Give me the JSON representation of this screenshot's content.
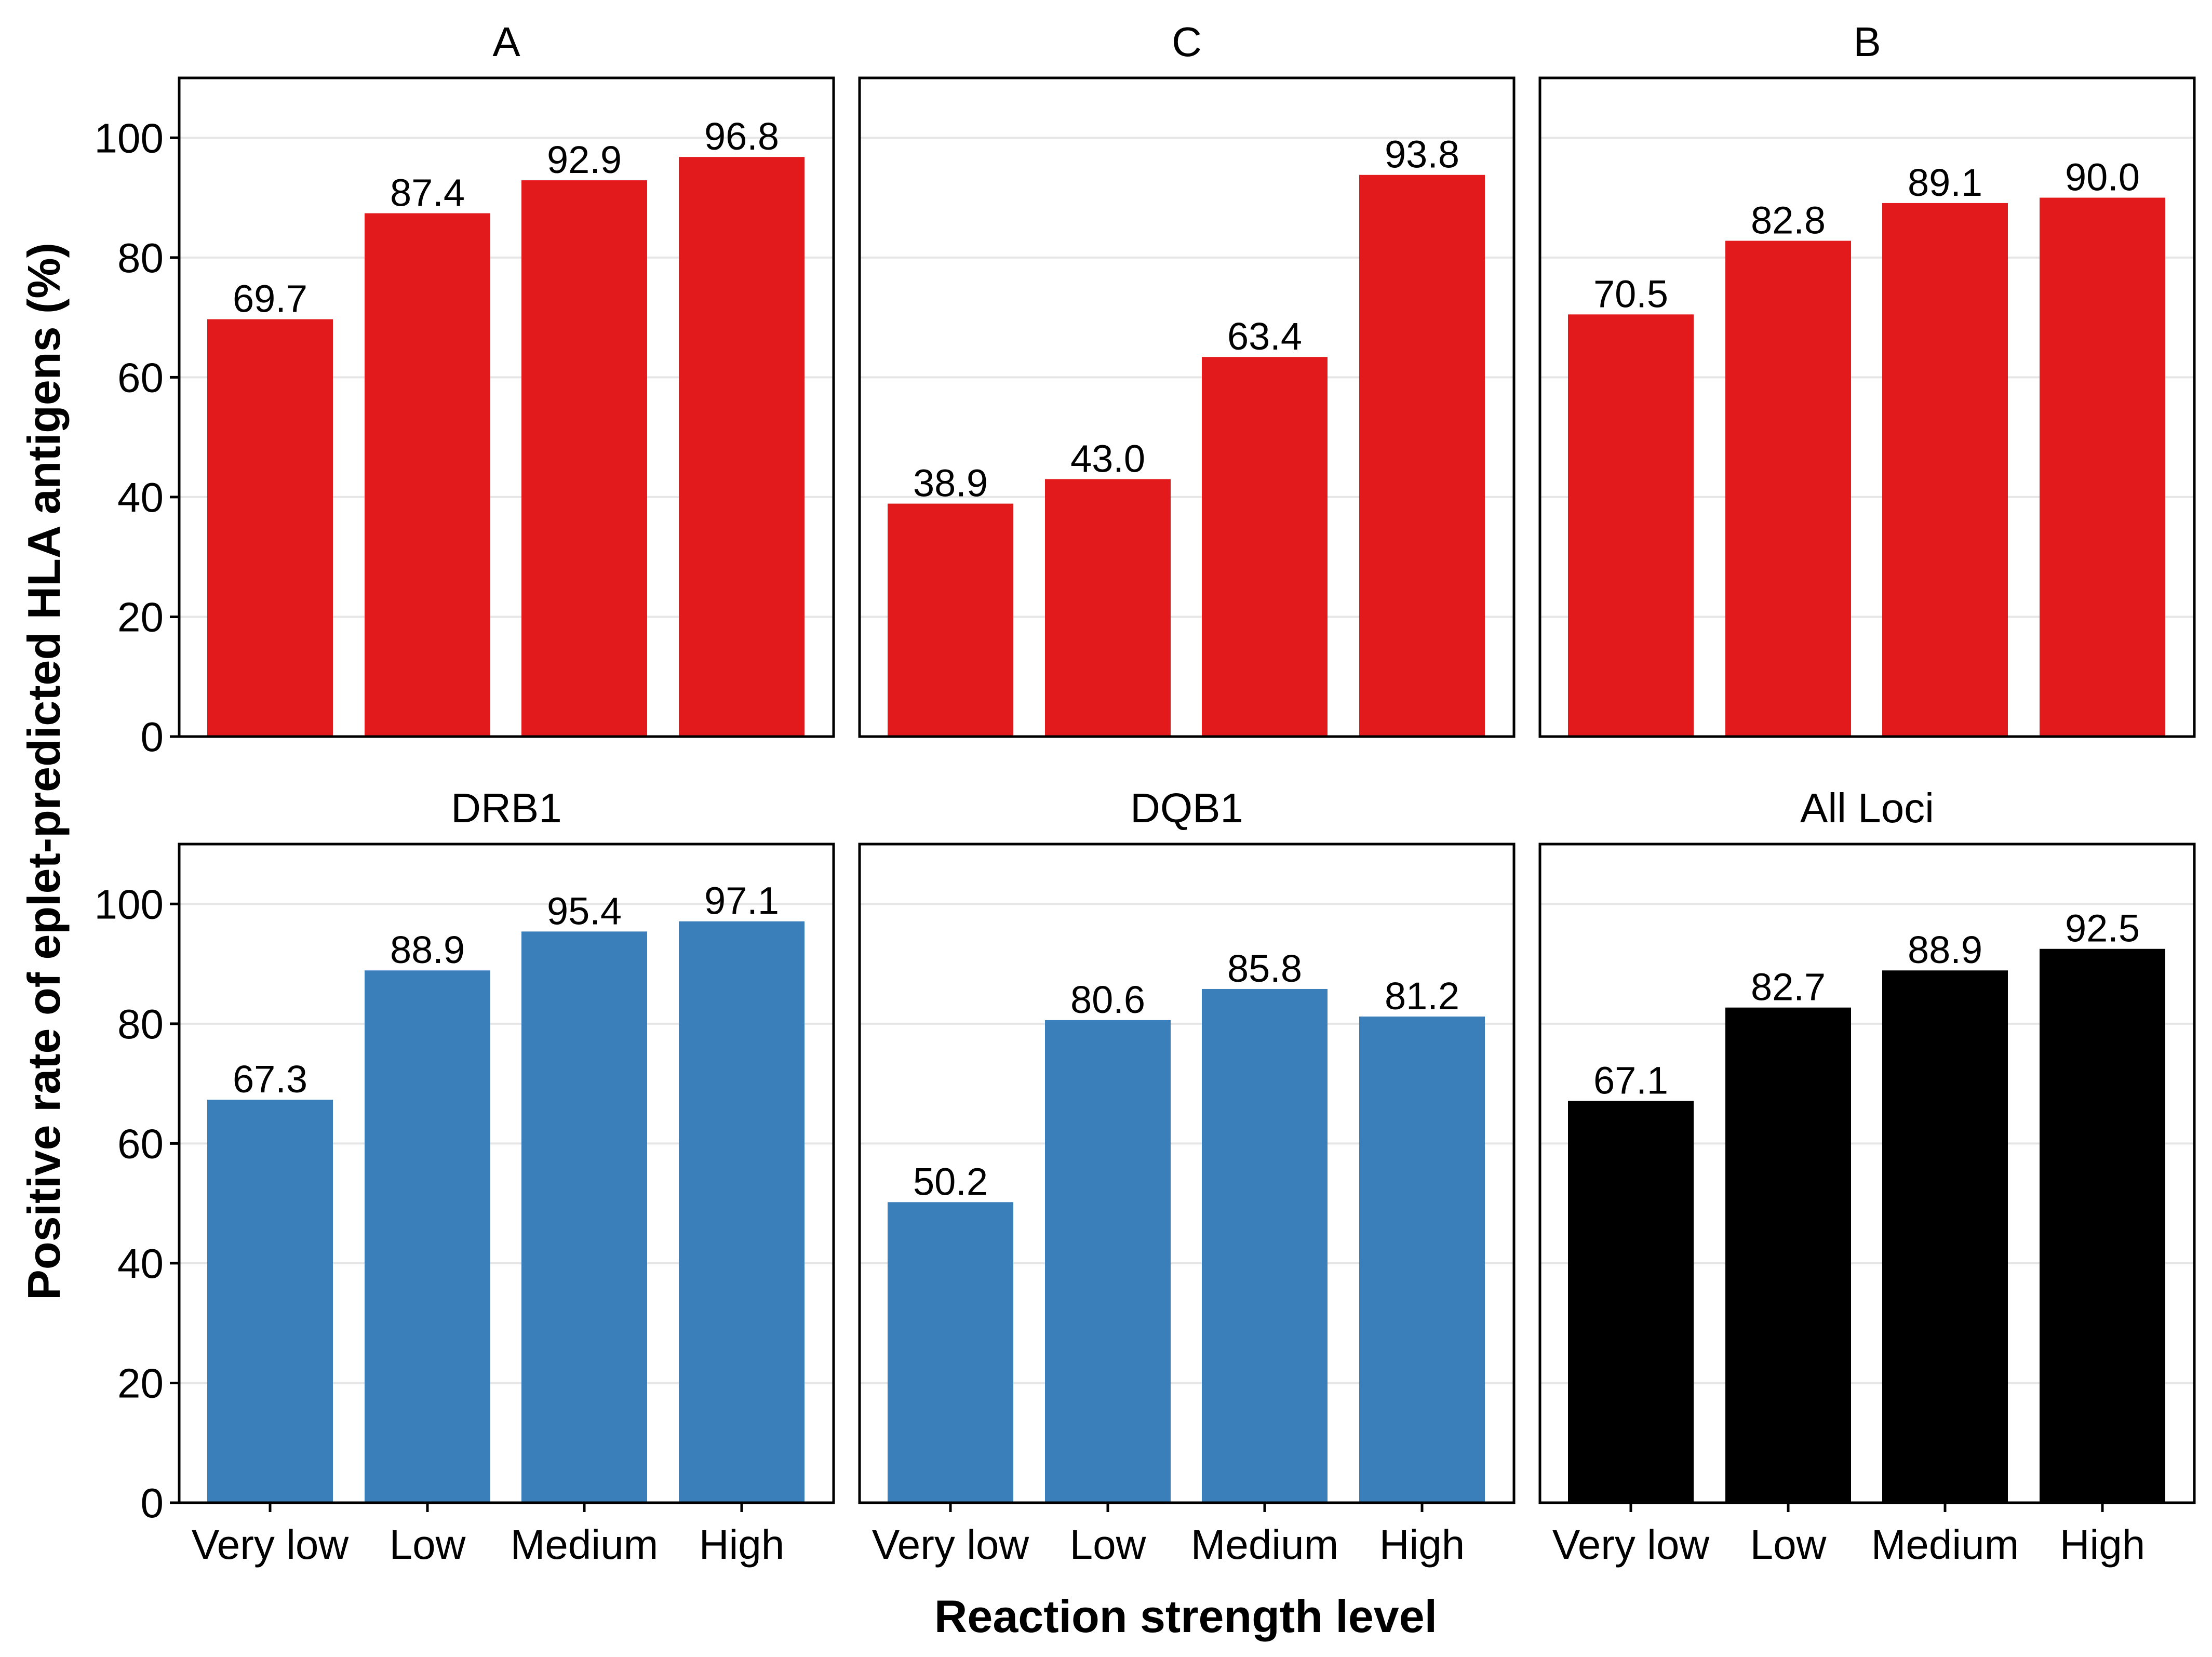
{
  "chart_data": {
    "type": "bar",
    "xlabel": "Reaction strength level",
    "ylabel": "Positive rate of eplet-predicted HLA antigens (%)",
    "categories": [
      "Very low",
      "Low",
      "Medium",
      "High"
    ],
    "ylim": [
      0,
      110
    ],
    "yticks": [
      0,
      20,
      40,
      60,
      80,
      100
    ],
    "grid": true,
    "layout": "2x3 facets",
    "panels": [
      {
        "title": "A",
        "color": "#e31a1c",
        "values": [
          69.7,
          87.4,
          92.9,
          96.8
        ],
        "labels": [
          "69.7",
          "87.4",
          "92.9",
          "96.8"
        ]
      },
      {
        "title": "C",
        "color": "#e31a1c",
        "values": [
          38.9,
          43.0,
          63.4,
          93.8
        ],
        "labels": [
          "38.9",
          "43.0",
          "63.4",
          "93.8"
        ]
      },
      {
        "title": "B",
        "color": "#e31a1c",
        "values": [
          70.5,
          82.8,
          89.1,
          90.0
        ],
        "labels": [
          "70.5",
          "82.8",
          "89.1",
          "90.0"
        ]
      },
      {
        "title": "DRB1",
        "color": "#3a7fba",
        "values": [
          67.3,
          88.9,
          95.4,
          97.1
        ],
        "labels": [
          "67.3",
          "88.9",
          "95.4",
          "97.1"
        ]
      },
      {
        "title": "DQB1",
        "color": "#3a7fba",
        "values": [
          50.2,
          80.6,
          85.8,
          81.2
        ],
        "labels": [
          "50.2",
          "80.6",
          "85.8",
          "81.2"
        ]
      },
      {
        "title": "All Loci",
        "color": "#000000",
        "values": [
          67.1,
          82.7,
          88.9,
          92.5
        ],
        "labels": [
          "67.1",
          "82.7",
          "88.9",
          "92.5"
        ]
      }
    ]
  }
}
